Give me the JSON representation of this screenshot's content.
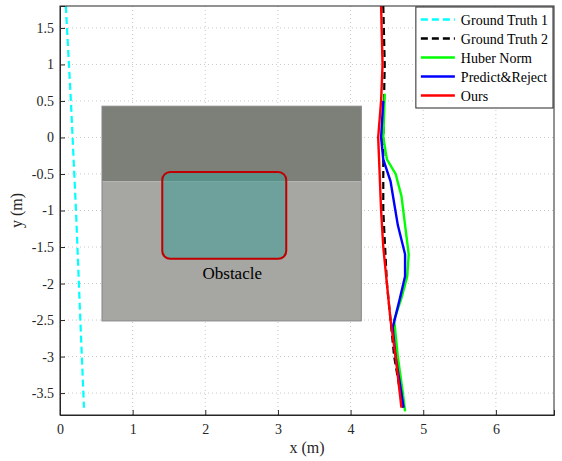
{
  "chart_data": {
    "type": "line",
    "x_label": "x (m)",
    "y_label": "y (m)",
    "xlim": [
      0,
      6.8
    ],
    "ylim": [
      -3.8,
      1.8
    ],
    "xticks": [
      0,
      1,
      2,
      3,
      4,
      5,
      6
    ],
    "yticks": [
      -3.5,
      -3,
      -2.5,
      -2,
      -1.5,
      -1,
      -0.5,
      0,
      0.5,
      1,
      1.5
    ],
    "grid": true,
    "legend": "top-right",
    "annotations": [
      {
        "text": "Obstacle"
      }
    ],
    "series": [
      {
        "name": "Ground Truth 1",
        "color": "#00ffff",
        "line_style": "dashed",
        "x": [
          0.08,
          0.15,
          0.22,
          0.28,
          0.33
        ],
        "values": [
          1.8,
          0.5,
          -1,
          -2.5,
          -3.7
        ]
      },
      {
        "name": "Ground Truth 2",
        "color": "#000000",
        "line_style": "dashed",
        "x": [
          4.45,
          4.47,
          4.45,
          4.45,
          4.5,
          4.6,
          4.72
        ],
        "values": [
          1.8,
          1,
          0,
          -1,
          -2,
          -3,
          -3.7
        ]
      },
      {
        "name": "Huber Norm",
        "color": "#00ff00",
        "line_style": "solid",
        "x": [
          4.47,
          4.45,
          4.5,
          4.62,
          4.7,
          4.75,
          4.8,
          4.78,
          4.7,
          4.6,
          4.65,
          4.72,
          4.75
        ],
        "values": [
          0.6,
          0,
          -0.3,
          -0.5,
          -0.8,
          -1.2,
          -1.6,
          -1.9,
          -2.2,
          -2.5,
          -3,
          -3.5,
          -3.75
        ]
      },
      {
        "name": "Predict&Reject",
        "color": "#0000ff",
        "line_style": "solid",
        "x": [
          4.45,
          4.42,
          4.45,
          4.55,
          4.6,
          4.65,
          4.75,
          4.75,
          4.68,
          4.58,
          4.62,
          4.7,
          4.73
        ],
        "values": [
          0.5,
          0,
          -0.3,
          -0.6,
          -0.9,
          -1.2,
          -1.6,
          -1.9,
          -2.2,
          -2.6,
          -3,
          -3.5,
          -3.7
        ]
      },
      {
        "name": "Ours",
        "color": "#ff0000",
        "line_style": "solid",
        "x": [
          4.42,
          4.44,
          4.42,
          4.38,
          4.4,
          4.42,
          4.45,
          4.5,
          4.55,
          4.62,
          4.7
        ],
        "values": [
          1.8,
          1,
          0.5,
          0,
          -0.5,
          -1,
          -1.5,
          -2,
          -2.5,
          -3,
          -3.7
        ]
      }
    ]
  }
}
